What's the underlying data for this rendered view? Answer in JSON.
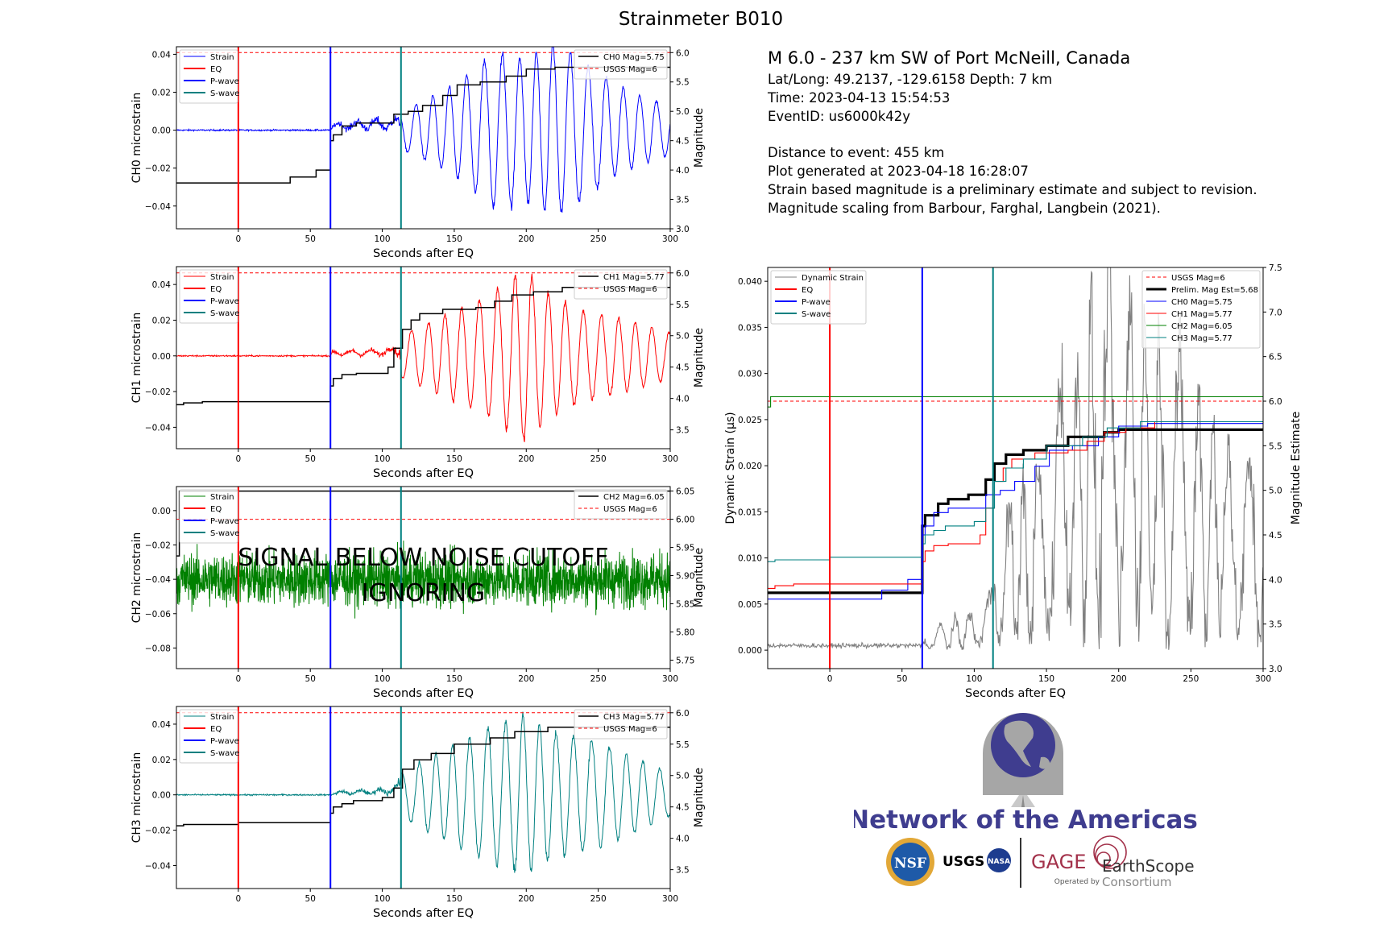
{
  "figure": {
    "title": "Strainmeter B010"
  },
  "event_info": {
    "title": "M 6.0 - 237 km SW of Port McNeill, Canada",
    "latlong": "Lat/Long: 49.2137, -129.6158  Depth: 7 km",
    "time": "Time: 2023-04-13 15:54:53",
    "event_id": "EventID: us6000k42y",
    "distance": "Distance to event: 455 km",
    "generated": "Plot generated at 2023-04-18 16:28:07",
    "disclaimer": "Strain based magnitude is a preliminary estimate and subject to revision.",
    "scaling": "Magnitude scaling from Barbour, Farghal, Langbein (2021)."
  },
  "noise_text": [
    "SIGNAL BELOW NOISE CUTOFF",
    "IGNORING"
  ],
  "logos": {
    "network": "Network of the Americas",
    "nsf": "NSF",
    "usgs": "USGS",
    "nasa": "NASA",
    "gage": "GAGE",
    "operated_by": "Operated by",
    "earthscope": "EarthScope",
    "consortium": "Consortium"
  },
  "colors": {
    "ch0": "#0000ff",
    "ch1": "#ff0000",
    "ch2": "#008000",
    "ch3": "#008080",
    "eq": "#ff0000",
    "p_wave": "#0000ff",
    "s_wave": "#008080",
    "usgs": "#ff0000",
    "magnitude": "#000000",
    "dynamic": "#808080",
    "logo_purple": "#3f3d8f",
    "logo_red": "#a3324b"
  },
  "chart_data": [
    {
      "id": "ch0",
      "type": "line",
      "xlabel": "Seconds after EQ",
      "ylabel": "CH0 microstrain",
      "y2label": "Magnitude",
      "xlim": [
        -43,
        300
      ],
      "ylim": [
        -0.052,
        0.044
      ],
      "y2lim": [
        3.0,
        6.1
      ],
      "xticks": [
        0,
        50,
        100,
        150,
        200,
        250,
        300
      ],
      "yticks": [
        -0.04,
        -0.02,
        0.0,
        0.02,
        0.04
      ],
      "y2ticks": [
        3.0,
        3.5,
        4.0,
        4.5,
        5.0,
        5.5,
        6.0
      ],
      "y_decimals": 2,
      "y2_decimals": 1,
      "eq_time": 0,
      "p_time": 64,
      "s_time": 113,
      "usgs_mag": 6,
      "legend_left": [
        "Strain",
        "EQ",
        "P-wave",
        "S-wave"
      ],
      "legend_right": [
        "CH0 Mag=5.75",
        "USGS Mag=6"
      ],
      "magnitude_steps": [
        [
          -43,
          3.78
        ],
        [
          36,
          3.88
        ],
        [
          54,
          4.0
        ],
        [
          64,
          4.5
        ],
        [
          66,
          4.6
        ],
        [
          72,
          4.75
        ],
        [
          82,
          4.8
        ],
        [
          108,
          4.95
        ],
        [
          118,
          5.0
        ],
        [
          128,
          5.1
        ],
        [
          142,
          5.27
        ],
        [
          152,
          5.45
        ],
        [
          168,
          5.5
        ],
        [
          186,
          5.6
        ],
        [
          200,
          5.72
        ],
        [
          220,
          5.75
        ],
        [
          300,
          5.75
        ]
      ],
      "strain_envelope": [
        [
          -43,
          0.001
        ],
        [
          64,
          0.001
        ],
        [
          66,
          0.004
        ],
        [
          90,
          0.006
        ],
        [
          112,
          0.007
        ],
        [
          113,
          0.01
        ],
        [
          125,
          0.014
        ],
        [
          140,
          0.02
        ],
        [
          150,
          0.024
        ],
        [
          160,
          0.03
        ],
        [
          175,
          0.04
        ],
        [
          190,
          0.04
        ],
        [
          200,
          0.038
        ],
        [
          210,
          0.042
        ],
        [
          220,
          0.046
        ],
        [
          240,
          0.036
        ],
        [
          260,
          0.025
        ],
        [
          280,
          0.018
        ],
        [
          300,
          0.013
        ]
      ],
      "strain_period": 12
    },
    {
      "id": "ch1",
      "type": "line",
      "xlabel": "Seconds after EQ",
      "ylabel": "CH1 microstrain",
      "y2label": "Magnitude",
      "xlim": [
        -43,
        300
      ],
      "ylim": [
        -0.052,
        0.05
      ],
      "y2lim": [
        3.2,
        6.1
      ],
      "xticks": [
        0,
        50,
        100,
        150,
        200,
        250,
        300
      ],
      "yticks": [
        -0.04,
        -0.02,
        0.0,
        0.02,
        0.04
      ],
      "y2ticks": [
        3.5,
        4.0,
        4.5,
        5.0,
        5.5,
        6.0
      ],
      "y_decimals": 2,
      "y2_decimals": 1,
      "eq_time": 0,
      "p_time": 64,
      "s_time": 113,
      "usgs_mag": 6,
      "legend_left": [
        "Strain",
        "EQ",
        "P-wave",
        "S-wave"
      ],
      "legend_right": [
        "CH1 Mag=5.77",
        "USGS Mag=6"
      ],
      "magnitude_steps": [
        [
          -43,
          3.9
        ],
        [
          -38,
          3.93
        ],
        [
          -25,
          3.95
        ],
        [
          64,
          4.2
        ],
        [
          66,
          4.32
        ],
        [
          72,
          4.38
        ],
        [
          82,
          4.4
        ],
        [
          104,
          4.5
        ],
        [
          108,
          4.8
        ],
        [
          114,
          5.1
        ],
        [
          120,
          5.25
        ],
        [
          126,
          5.35
        ],
        [
          142,
          5.42
        ],
        [
          165,
          5.45
        ],
        [
          178,
          5.55
        ],
        [
          190,
          5.65
        ],
        [
          205,
          5.7
        ],
        [
          225,
          5.77
        ],
        [
          300,
          5.77
        ]
      ],
      "strain_envelope": [
        [
          -43,
          0.001
        ],
        [
          64,
          0.001
        ],
        [
          66,
          0.003
        ],
        [
          100,
          0.004
        ],
        [
          112,
          0.007
        ],
        [
          113,
          0.012
        ],
        [
          130,
          0.018
        ],
        [
          150,
          0.025
        ],
        [
          170,
          0.032
        ],
        [
          185,
          0.04
        ],
        [
          200,
          0.048
        ],
        [
          215,
          0.035
        ],
        [
          240,
          0.025
        ],
        [
          270,
          0.02
        ],
        [
          300,
          0.013
        ]
      ],
      "strain_period": 12
    },
    {
      "id": "ch2",
      "type": "line",
      "xlabel": "Seconds after EQ",
      "ylabel": "CH2 microstrain",
      "y2label": "Magnitude",
      "xlim": [
        -43,
        300
      ],
      "ylim": [
        -0.092,
        0.014
      ],
      "y2lim": [
        5.735,
        6.058
      ],
      "xticks": [
        0,
        50,
        100,
        150,
        200,
        250,
        300
      ],
      "yticks": [
        -0.08,
        -0.06,
        -0.04,
        -0.02,
        0.0
      ],
      "y2ticks": [
        5.75,
        5.8,
        5.85,
        5.9,
        5.95,
        6.0,
        6.05
      ],
      "y_decimals": 2,
      "y2_decimals": 2,
      "eq_time": 0,
      "p_time": 64,
      "s_time": 113,
      "usgs_mag": 6,
      "legend_left": [
        "Strain",
        "EQ",
        "P-wave",
        "S-wave"
      ],
      "legend_right": [
        "CH2 Mag=6.05",
        "USGS Mag=6"
      ],
      "magnitude_steps": [
        [
          -43,
          5.935
        ],
        [
          -41,
          6.05
        ],
        [
          300,
          6.05
        ]
      ],
      "noise_center": -0.04,
      "noise_amplitude": 0.02
    },
    {
      "id": "ch3",
      "type": "line",
      "xlabel": "Seconds after EQ",
      "ylabel": "CH3 microstrain",
      "y2label": "Magnitude",
      "xlim": [
        -43,
        300
      ],
      "ylim": [
        -0.053,
        0.05
      ],
      "y2lim": [
        3.2,
        6.1
      ],
      "xticks": [
        0,
        50,
        100,
        150,
        200,
        250,
        300
      ],
      "yticks": [
        -0.04,
        -0.02,
        0.0,
        0.02,
        0.04
      ],
      "y2ticks": [
        3.5,
        4.0,
        4.5,
        5.0,
        5.5,
        6.0
      ],
      "y_decimals": 2,
      "y2_decimals": 1,
      "eq_time": 0,
      "p_time": 64,
      "s_time": 113,
      "usgs_mag": 6,
      "legend_left": [
        "Strain",
        "EQ",
        "P-wave",
        "S-wave"
      ],
      "legend_right": [
        "CH3 Mag=5.77",
        "USGS Mag=6"
      ],
      "magnitude_steps": [
        [
          -43,
          4.2
        ],
        [
          -38,
          4.22
        ],
        [
          0,
          4.25
        ],
        [
          64,
          4.4
        ],
        [
          66,
          4.5
        ],
        [
          72,
          4.55
        ],
        [
          80,
          4.6
        ],
        [
          100,
          4.65
        ],
        [
          108,
          4.8
        ],
        [
          114,
          5.1
        ],
        [
          122,
          5.25
        ],
        [
          134,
          5.35
        ],
        [
          150,
          5.5
        ],
        [
          175,
          5.6
        ],
        [
          192,
          5.7
        ],
        [
          215,
          5.77
        ],
        [
          300,
          5.77
        ]
      ],
      "strain_envelope": [
        [
          -43,
          0.001
        ],
        [
          64,
          0.001
        ],
        [
          66,
          0.002
        ],
        [
          100,
          0.004
        ],
        [
          112,
          0.008
        ],
        [
          113,
          0.012
        ],
        [
          130,
          0.02
        ],
        [
          150,
          0.028
        ],
        [
          175,
          0.038
        ],
        [
          200,
          0.045
        ],
        [
          220,
          0.035
        ],
        [
          250,
          0.03
        ],
        [
          300,
          0.012
        ]
      ],
      "strain_period": 12
    },
    {
      "id": "summary",
      "type": "line",
      "xlabel": "Seconds after EQ",
      "ylabel": "Dynamic Strain (µs)",
      "y2label": "Magnitude Estimate",
      "xlim": [
        -43,
        300
      ],
      "ylim": [
        -0.002,
        0.0415
      ],
      "y2lim": [
        3.0,
        7.5
      ],
      "xticks": [
        0,
        50,
        100,
        150,
        200,
        250,
        300
      ],
      "yticks": [
        0.0,
        0.005,
        0.01,
        0.015,
        0.02,
        0.025,
        0.03,
        0.035,
        0.04
      ],
      "y2ticks": [
        3.0,
        3.5,
        4.0,
        4.5,
        5.0,
        5.5,
        6.0,
        6.5,
        7.0,
        7.5
      ],
      "y_decimals": 3,
      "y2_decimals": 1,
      "eq_time": 0,
      "p_time": 64,
      "s_time": 113,
      "usgs_mag": 6,
      "legend_left": [
        "Dynamic Strain",
        "EQ",
        "P-wave",
        "S-wave"
      ],
      "legend_right": [
        "USGS Mag=6",
        "Prelim. Mag Est=5.68",
        "CH0 Mag=5.75",
        "CH1 Mag=5.77",
        "CH2 Mag=6.05",
        "CH3 Mag=5.77"
      ],
      "dynamic_envelope": [
        [
          -43,
          0.0005
        ],
        [
          64,
          0.0005
        ],
        [
          66,
          0.002
        ],
        [
          100,
          0.004
        ],
        [
          112,
          0.006
        ],
        [
          115,
          0.012
        ],
        [
          125,
          0.016
        ],
        [
          150,
          0.02
        ],
        [
          160,
          0.03
        ],
        [
          170,
          0.032
        ],
        [
          185,
          0.037
        ],
        [
          195,
          0.04
        ],
        [
          210,
          0.036
        ],
        [
          230,
          0.032
        ],
        [
          250,
          0.028
        ],
        [
          280,
          0.022
        ],
        [
          300,
          0.018
        ]
      ],
      "series_mag": [
        {
          "name": "Prelim. Mag Est=5.68",
          "color": "#000000",
          "width": 3.2,
          "steps": [
            [
              -43,
              3.85
            ],
            [
              64,
              4.6
            ],
            [
              66,
              4.72
            ],
            [
              75,
              4.85
            ],
            [
              82,
              4.9
            ],
            [
              96,
              4.95
            ],
            [
              108,
              5.12
            ],
            [
              114,
              5.3
            ],
            [
              122,
              5.4
            ],
            [
              134,
              5.45
            ],
            [
              150,
              5.5
            ],
            [
              165,
              5.6
            ],
            [
              190,
              5.65
            ],
            [
              200,
              5.68
            ],
            [
              300,
              5.68
            ]
          ]
        },
        {
          "name": "CH0 Mag=5.75",
          "color": "#0000ff",
          "width": 1.1,
          "steps": [
            [
              -43,
              3.78
            ],
            [
              36,
              3.88
            ],
            [
              54,
              4.0
            ],
            [
              64,
              4.5
            ],
            [
              66,
              4.6
            ],
            [
              72,
              4.75
            ],
            [
              82,
              4.8
            ],
            [
              108,
              4.95
            ],
            [
              118,
              5.0
            ],
            [
              128,
              5.1
            ],
            [
              142,
              5.27
            ],
            [
              152,
              5.45
            ],
            [
              168,
              5.5
            ],
            [
              186,
              5.6
            ],
            [
              200,
              5.72
            ],
            [
              220,
              5.75
            ],
            [
              300,
              5.75
            ]
          ]
        },
        {
          "name": "CH1 Mag=5.77",
          "color": "#ff0000",
          "width": 1.1,
          "steps": [
            [
              -43,
              3.9
            ],
            [
              -38,
              3.93
            ],
            [
              -25,
              3.95
            ],
            [
              64,
              4.2
            ],
            [
              66,
              4.32
            ],
            [
              72,
              4.38
            ],
            [
              82,
              4.4
            ],
            [
              104,
              4.5
            ],
            [
              108,
              4.8
            ],
            [
              114,
              5.1
            ],
            [
              120,
              5.25
            ],
            [
              126,
              5.35
            ],
            [
              142,
              5.42
            ],
            [
              165,
              5.45
            ],
            [
              178,
              5.55
            ],
            [
              190,
              5.65
            ],
            [
              205,
              5.7
            ],
            [
              225,
              5.77
            ],
            [
              300,
              5.77
            ]
          ]
        },
        {
          "name": "CH2 Mag=6.05",
          "color": "#008000",
          "width": 1.1,
          "steps": [
            [
              -43,
              5.935
            ],
            [
              -41,
              6.05
            ],
            [
              300,
              6.05
            ]
          ]
        },
        {
          "name": "CH3 Mag=5.77",
          "color": "#008080",
          "width": 1.1,
          "steps": [
            [
              -43,
              4.2
            ],
            [
              -38,
              4.22
            ],
            [
              0,
              4.25
            ],
            [
              64,
              4.4
            ],
            [
              66,
              4.5
            ],
            [
              72,
              4.55
            ],
            [
              80,
              4.6
            ],
            [
              100,
              4.65
            ],
            [
              108,
              4.8
            ],
            [
              114,
              5.1
            ],
            [
              122,
              5.25
            ],
            [
              134,
              5.35
            ],
            [
              150,
              5.5
            ],
            [
              175,
              5.6
            ],
            [
              192,
              5.7
            ],
            [
              215,
              5.77
            ],
            [
              300,
              5.77
            ]
          ]
        }
      ]
    }
  ]
}
